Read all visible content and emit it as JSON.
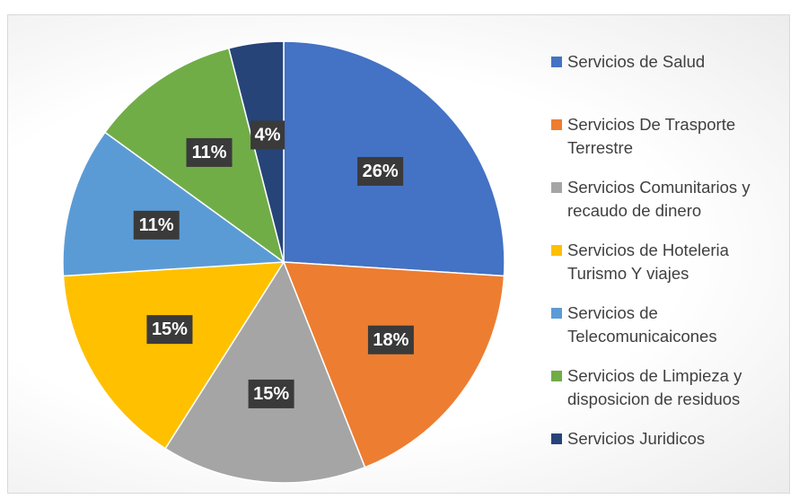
{
  "chart_data": {
    "type": "pie",
    "categories": [
      "Servicios de Salud",
      "Servicios De Trasporte Terrestre",
      "Servicios Comunitarios y recaudo de dinero",
      "Servicios de Hoteleria Turismo Y viajes",
      "Servicios de Telecomunicaicones",
      "Servicios de Limpieza y disposicion de residuos",
      "Servicios Juridicos"
    ],
    "values": [
      26,
      18,
      15,
      15,
      11,
      11,
      4
    ],
    "value_labels": [
      "26%",
      "18%",
      "15%",
      "15%",
      "11%",
      "11%",
      "4%"
    ],
    "colors": [
      "#4472c4",
      "#ed7d31",
      "#a5a5a5",
      "#ffc000",
      "#5b9bd5",
      "#70ad47",
      "#264478"
    ],
    "legend": "right"
  }
}
